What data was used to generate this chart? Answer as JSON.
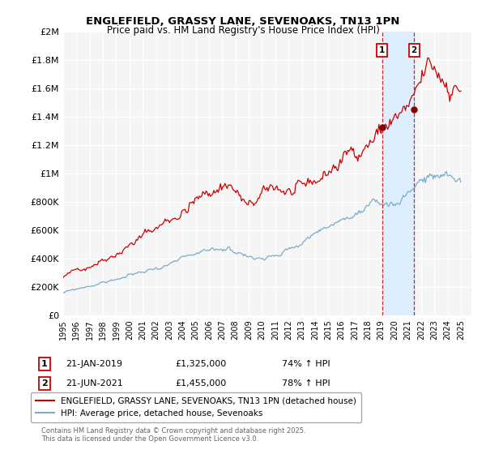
{
  "title": "ENGLEFIELD, GRASSY LANE, SEVENOAKS, TN13 1PN",
  "subtitle": "Price paid vs. HM Land Registry's House Price Index (HPI)",
  "ylabel_ticks": [
    "£0",
    "£200K",
    "£400K",
    "£600K",
    "£800K",
    "£1M",
    "£1.2M",
    "£1.4M",
    "£1.6M",
    "£1.8M",
    "£2M"
  ],
  "ytick_values": [
    0,
    200000,
    400000,
    600000,
    800000,
    1000000,
    1200000,
    1400000,
    1600000,
    1800000,
    2000000
  ],
  "x_start_year": 1995,
  "x_end_year": 2025,
  "red_color": "#cc0000",
  "blue_color": "#7aadcc",
  "red_label": "ENGLEFIELD, GRASSY LANE, SEVENOAKS, TN13 1PN (detached house)",
  "blue_label": "HPI: Average price, detached house, Sevenoaks",
  "sale1_date": "21-JAN-2019",
  "sale1_price": "£1,325,000",
  "sale1_hpi": "74% ↑ HPI",
  "sale1_year": 2019.05,
  "sale1_price_val": 1325000,
  "sale2_date": "21-JUN-2021",
  "sale2_price": "£1,455,000",
  "sale2_hpi": "78% ↑ HPI",
  "sale2_year": 2021.47,
  "sale2_price_val": 1455000,
  "footnote": "Contains HM Land Registry data © Crown copyright and database right 2025.\nThis data is licensed under the Open Government Licence v3.0.",
  "background_color": "#ffffff",
  "plot_bg_color": "#f5f5f5",
  "span_color": "#ddeeff"
}
